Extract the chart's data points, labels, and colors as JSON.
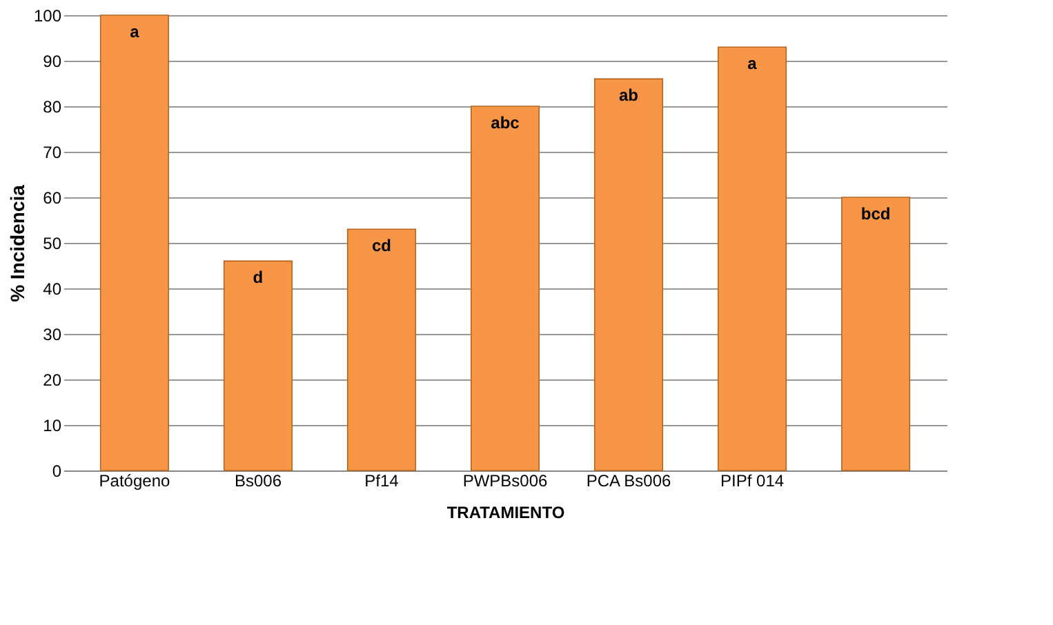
{
  "chart_data": {
    "type": "bar",
    "xlabel": "TRATAMIENTO",
    "ylabel": "% Incidencia",
    "categories": [
      "Patógeno",
      "Bs006",
      "Pf14",
      "PWPBs006",
      "PCA Bs006",
      "PIPf 014",
      null
    ],
    "values": [
      100,
      46,
      53,
      80,
      86,
      93,
      60
    ],
    "value_labels": [
      "a",
      "d",
      "cd",
      "abc",
      "ab",
      "a",
      "bcd"
    ],
    "color": "#f79646",
    "ylim": [
      0,
      100
    ],
    "yticks": [
      0,
      10,
      20,
      30,
      40,
      50,
      60,
      70,
      80,
      90,
      100
    ],
    "grid": "y"
  }
}
